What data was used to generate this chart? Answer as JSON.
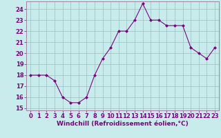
{
  "x": [
    0,
    1,
    2,
    3,
    4,
    5,
    6,
    7,
    8,
    9,
    10,
    11,
    12,
    13,
    14,
    15,
    16,
    17,
    18,
    19,
    20,
    21,
    22,
    23
  ],
  "y": [
    18.0,
    18.0,
    18.0,
    17.5,
    16.0,
    15.5,
    15.5,
    16.0,
    18.0,
    19.5,
    20.5,
    22.0,
    22.0,
    23.0,
    24.5,
    23.0,
    23.0,
    22.5,
    22.5,
    22.5,
    20.5,
    20.0,
    19.5,
    20.5
  ],
  "line_color": "#800080",
  "marker": "D",
  "marker_size": 2.0,
  "line_width": 0.8,
  "background_color": "#c8ecec",
  "grid_color": "#a0c8c8",
  "border_color": "#a080a0",
  "xlabel": "Windchill (Refroidissement éolien,°C)",
  "xlabel_fontsize": 6.5,
  "tick_fontsize": 6.0,
  "ylim": [
    14.8,
    24.7
  ],
  "yticks": [
    15,
    16,
    17,
    18,
    19,
    20,
    21,
    22,
    23,
    24
  ],
  "xlim": [
    -0.5,
    23.5
  ],
  "xticks": [
    0,
    1,
    2,
    3,
    4,
    5,
    6,
    7,
    8,
    9,
    10,
    11,
    12,
    13,
    14,
    15,
    16,
    17,
    18,
    19,
    20,
    21,
    22,
    23
  ]
}
